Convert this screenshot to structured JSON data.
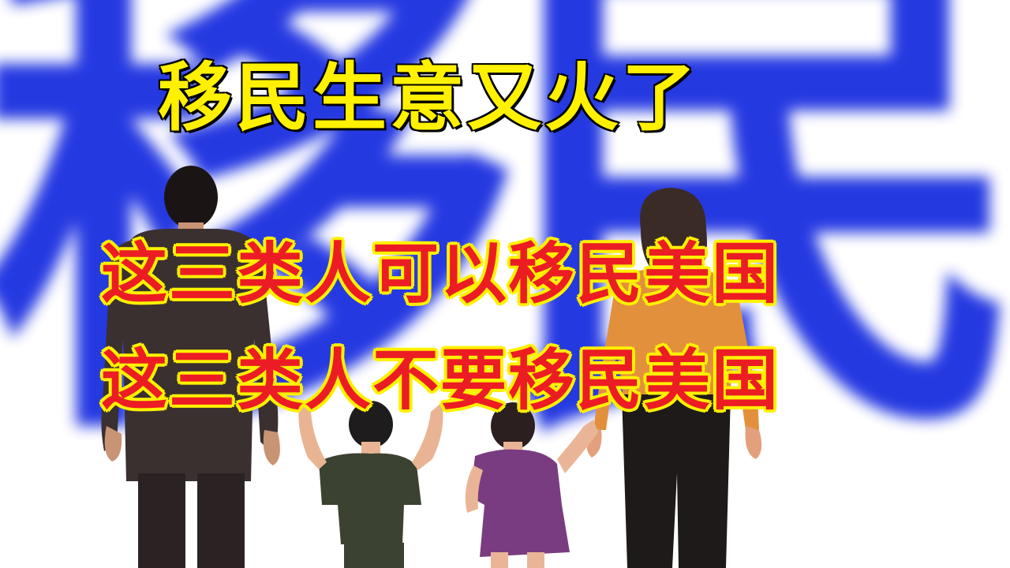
{
  "background_text": "移民",
  "headline_1": "移民生意又火了",
  "headline_2": "这三类人可以移民美国",
  "headline_3": "这三类人不要移民美国",
  "colors": {
    "background_text": "#1a2fe0",
    "headline_1_fill": "#fff100",
    "headline_1_outline": "#0a0a0a",
    "headline_2_fill": "#ec1c24",
    "headline_2_outline": "#fff100"
  },
  "figures": [
    "father-figurine",
    "boy-figurine",
    "girl-figurine",
    "mother-figurine"
  ]
}
